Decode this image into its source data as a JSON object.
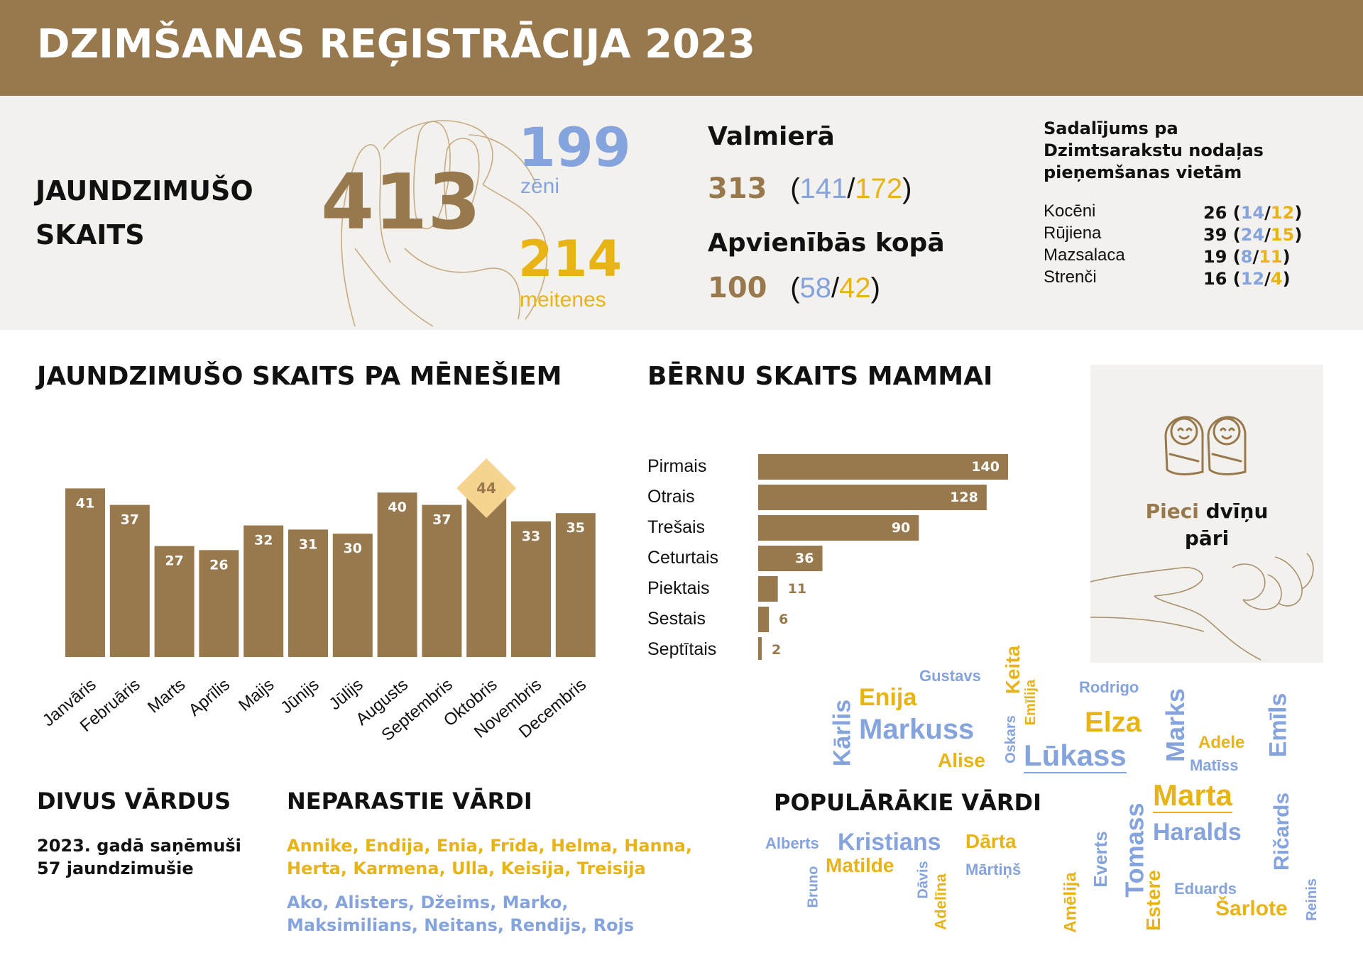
{
  "header": {
    "title": "DZIMŠANAS REĢISTRĀCIJA 2023"
  },
  "colors": {
    "brown": "#98784d",
    "blue": "#85a3dc",
    "gold": "#e8b415",
    "highlight": "#f5d48f",
    "band": "#f3f1ed"
  },
  "newborns": {
    "label_line1": "JAUNDZIMUŠO",
    "label_line2": "SKAITS",
    "total": "413",
    "boys": "199",
    "boys_label": "zēni",
    "girls": "214",
    "girls_label": "meitenes"
  },
  "valmiera": {
    "title": "Valmierā",
    "total": "313",
    "open": "(",
    "boys": "141",
    "slash": "/",
    "girls": "172",
    "close": ")",
    "combined_title": "Apvienībās kopā",
    "combined_total": "100",
    "combined_boys": "58",
    "combined_girls": "42"
  },
  "locations": {
    "title_line1": "Sadalījums pa",
    "title_line2": "Dzimtsarakstu nodaļas",
    "title_line3": "pieņemšanas vietām",
    "rows": [
      {
        "name": "Kocēni",
        "total": "26",
        "boys": "14",
        "girls": "12"
      },
      {
        "name": "Rūjiena",
        "total": "39",
        "boys": "24",
        "girls": "15"
      },
      {
        "name": "Mazsalaca",
        "total": "19",
        "boys": "8",
        "girls": "11"
      },
      {
        "name": "Strenči",
        "total": "16",
        "boys": "12",
        "girls": "4"
      }
    ]
  },
  "chart_data": [
    {
      "type": "bar",
      "title": "JAUNDZIMUŠO SKAITS PA MĒNEŠIEM",
      "categories": [
        "Janvāris",
        "Februāris",
        "Marts",
        "Aprīlis",
        "Maijs",
        "Jūnijs",
        "Jūlijs",
        "Augusts",
        "Septembris",
        "Oktobris",
        "Novembris",
        "Decembris"
      ],
      "values": [
        41,
        37,
        27,
        26,
        32,
        31,
        30,
        40,
        37,
        44,
        33,
        35
      ],
      "highlight": "Oktobris",
      "ylim": [
        0,
        44
      ]
    },
    {
      "type": "bar",
      "orientation": "horizontal",
      "title": "BĒRNU SKAITS MAMMAI",
      "categories": [
        "Pirmais",
        "Otrais",
        "Trešais",
        "Ceturtais",
        "Piektais",
        "Sestais",
        "Septītais"
      ],
      "values": [
        140,
        128,
        90,
        36,
        11,
        6,
        2
      ],
      "xlim": [
        0,
        140
      ]
    }
  ],
  "twins": {
    "word1": "Pieci",
    "word2": "dvīņu",
    "word3": "pāri"
  },
  "two_names": {
    "title": "DIVUS VĀRDUS",
    "line1": "2023. gadā saņēmuši",
    "line2": "57 jaundzimušie"
  },
  "unusual_names": {
    "title": "NEPARASTIE VĀRDI",
    "girls_line1": "Annike, Endija, Enia, Frīda, Helma, Hanna,",
    "girls_line2": "Herta, Karmena, Ulla, Keisija, Treisija",
    "boys_line1": "Ako, Alisters, Džeims, Marko,",
    "boys_line2": "Maksimilians, Neitans, Rendijs, Rojs"
  },
  "popular_names": {
    "title": "POPULĀRĀKIE VĀRDI",
    "words": [
      {
        "text": "Gustavs",
        "color": "blue"
      },
      {
        "text": "Keita",
        "color": "gold"
      },
      {
        "text": "Emīlija",
        "color": "gold"
      },
      {
        "text": "Rodrigo",
        "color": "blue"
      },
      {
        "text": "Marks",
        "color": "blue"
      },
      {
        "text": "Emīls",
        "color": "blue"
      },
      {
        "text": "Kārlis",
        "color": "blue"
      },
      {
        "text": "Enija",
        "color": "gold"
      },
      {
        "text": "Markuss",
        "color": "blue"
      },
      {
        "text": "Oskars",
        "color": "blue"
      },
      {
        "text": "Elza",
        "color": "gold"
      },
      {
        "text": "Adele",
        "color": "gold"
      },
      {
        "text": "Alise",
        "color": "gold"
      },
      {
        "text": "Lūkass",
        "color": "blue"
      },
      {
        "text": "Matīss",
        "color": "blue"
      },
      {
        "text": "Marta",
        "color": "gold"
      },
      {
        "text": "Alberts",
        "color": "blue"
      },
      {
        "text": "Kristians",
        "color": "blue"
      },
      {
        "text": "Dārta",
        "color": "gold"
      },
      {
        "text": "Tomass",
        "color": "blue"
      },
      {
        "text": "Haralds",
        "color": "blue"
      },
      {
        "text": "Ričards",
        "color": "blue"
      },
      {
        "text": "Matilde",
        "color": "gold"
      },
      {
        "text": "Mārtiņš",
        "color": "blue"
      },
      {
        "text": "Everts",
        "color": "blue"
      },
      {
        "text": "Bruno",
        "color": "blue"
      },
      {
        "text": "Dāvis",
        "color": "blue"
      },
      {
        "text": "Adelīna",
        "color": "gold"
      },
      {
        "text": "Amēlija",
        "color": "gold"
      },
      {
        "text": "Estere",
        "color": "gold"
      },
      {
        "text": "Eduards",
        "color": "blue"
      },
      {
        "text": "Šarlote",
        "color": "gold"
      },
      {
        "text": "Reinis",
        "color": "blue"
      }
    ]
  }
}
